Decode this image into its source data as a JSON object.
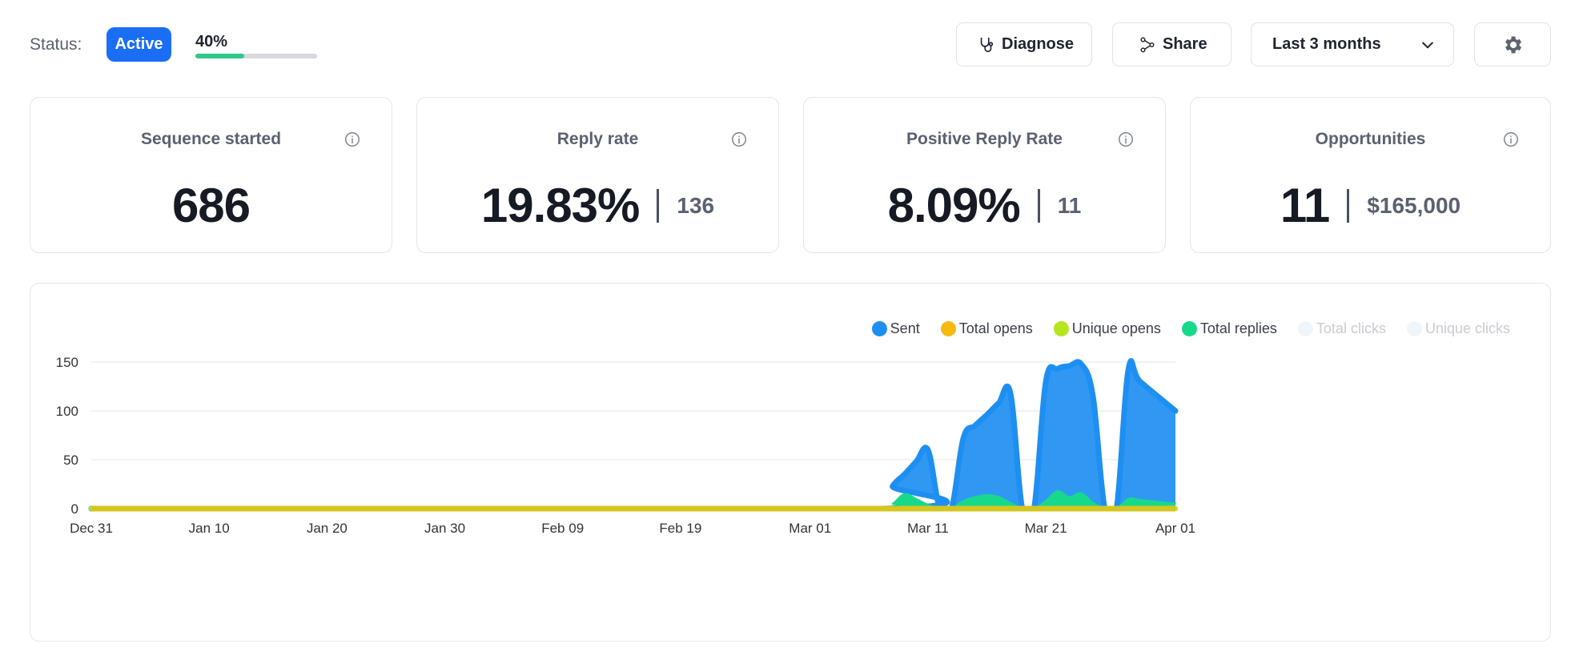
{
  "status": {
    "label": "Status:",
    "badge": "Active",
    "progress_text": "40%",
    "progress_value": 0.4,
    "progress_color": "#2fc78a"
  },
  "toolbar": {
    "diagnose_label": "Diagnose",
    "share_label": "Share",
    "range_selected": "Last 3 months",
    "gear_icon": "gear-icon"
  },
  "cards": [
    {
      "title": "Sequence started",
      "value": "686",
      "secondary": ""
    },
    {
      "title": "Reply rate",
      "value": "19.83%",
      "secondary": "136"
    },
    {
      "title": "Positive Reply Rate",
      "value": "8.09%",
      "secondary": "11"
    },
    {
      "title": "Opportunities",
      "value": "11",
      "secondary": "$165,000"
    }
  ],
  "colors": {
    "accent": "#1a6ef5",
    "sent": "#1e8ff2",
    "total_opens": "#f5b914",
    "unique_opens": "#b5e61d",
    "total_replies": "#17d98b",
    "total_clicks": "#eef6fb",
    "unique_clicks": "#eef6fb"
  },
  "chart_data": {
    "type": "area",
    "xlabel": "",
    "ylabel": "",
    "ylim": [
      0,
      150
    ],
    "yticks": [
      0,
      50,
      100,
      150
    ],
    "xlim": [
      "2023-12-31",
      "2024-04-01"
    ],
    "xticks": [
      {
        "label": "Dec 31",
        "date": "2023-12-31"
      },
      {
        "label": "Jan 10",
        "date": "2024-01-10"
      },
      {
        "label": "Jan 20",
        "date": "2024-01-20"
      },
      {
        "label": "Jan 30",
        "date": "2024-01-30"
      },
      {
        "label": "Feb 09",
        "date": "2024-02-09"
      },
      {
        "label": "Feb 19",
        "date": "2024-02-19"
      },
      {
        "label": "Mar 01",
        "date": "2024-03-01"
      },
      {
        "label": "Mar 11",
        "date": "2024-03-11"
      },
      {
        "label": "Mar 21",
        "date": "2024-03-21"
      },
      {
        "label": "Apr 01",
        "date": "2024-04-01"
      }
    ],
    "legend_position": "top-right",
    "grid": true,
    "series": [
      {
        "name": "Sent",
        "color": "#1e8ff2",
        "points": [
          [
            "2023-12-31",
            0
          ],
          [
            "2024-03-07",
            0
          ],
          [
            "2024-03-08",
            23
          ],
          [
            "2024-03-09",
            35
          ],
          [
            "2024-03-10",
            48
          ],
          [
            "2024-03-11",
            60
          ],
          [
            "2024-03-12",
            0
          ],
          [
            "2024-03-13",
            0
          ],
          [
            "2024-03-14",
            72
          ],
          [
            "2024-03-15",
            85
          ],
          [
            "2024-03-16",
            96
          ],
          [
            "2024-03-17",
            108
          ],
          [
            "2024-03-18",
            118
          ],
          [
            "2024-03-19",
            0
          ],
          [
            "2024-03-20",
            0
          ],
          [
            "2024-03-21",
            130
          ],
          [
            "2024-03-22",
            143
          ],
          [
            "2024-03-23",
            146
          ],
          [
            "2024-03-24",
            148
          ],
          [
            "2024-03-25",
            115
          ],
          [
            "2024-03-26",
            0
          ],
          [
            "2024-03-27",
            0
          ],
          [
            "2024-03-28",
            142
          ],
          [
            "2024-03-29",
            130
          ],
          [
            "2024-04-01",
            100
          ]
        ]
      },
      {
        "name": "Total opens",
        "color": "#f5b914",
        "points": [
          [
            "2023-12-31",
            0
          ],
          [
            "2024-04-01",
            0
          ]
        ]
      },
      {
        "name": "Unique opens",
        "color": "#b5e61d",
        "points": [
          [
            "2023-12-31",
            0
          ],
          [
            "2024-04-01",
            0
          ]
        ]
      },
      {
        "name": "Total replies",
        "color": "#17d98b",
        "points": [
          [
            "2023-12-31",
            0
          ],
          [
            "2024-03-07",
            0
          ],
          [
            "2024-03-08",
            5
          ],
          [
            "2024-03-09",
            15
          ],
          [
            "2024-03-10",
            10
          ],
          [
            "2024-03-11",
            4
          ],
          [
            "2024-03-12",
            0
          ],
          [
            "2024-03-13",
            0
          ],
          [
            "2024-03-14",
            8
          ],
          [
            "2024-03-15",
            12
          ],
          [
            "2024-03-16",
            14
          ],
          [
            "2024-03-17",
            12
          ],
          [
            "2024-03-18",
            6
          ],
          [
            "2024-03-19",
            0
          ],
          [
            "2024-03-20",
            0
          ],
          [
            "2024-03-21",
            8
          ],
          [
            "2024-03-22",
            18
          ],
          [
            "2024-03-23",
            12
          ],
          [
            "2024-03-24",
            16
          ],
          [
            "2024-03-25",
            6
          ],
          [
            "2024-03-26",
            0
          ],
          [
            "2024-03-27",
            0
          ],
          [
            "2024-03-28",
            10
          ],
          [
            "2024-03-29",
            9
          ],
          [
            "2024-04-01",
            5
          ]
        ]
      },
      {
        "name": "Total clicks",
        "color": "#eef6fb",
        "points": [
          [
            "2023-12-31",
            0
          ],
          [
            "2024-04-01",
            0
          ]
        ]
      },
      {
        "name": "Unique clicks",
        "color": "#eef6fb",
        "points": [
          [
            "2023-12-31",
            0
          ],
          [
            "2024-04-01",
            0
          ]
        ]
      }
    ]
  }
}
